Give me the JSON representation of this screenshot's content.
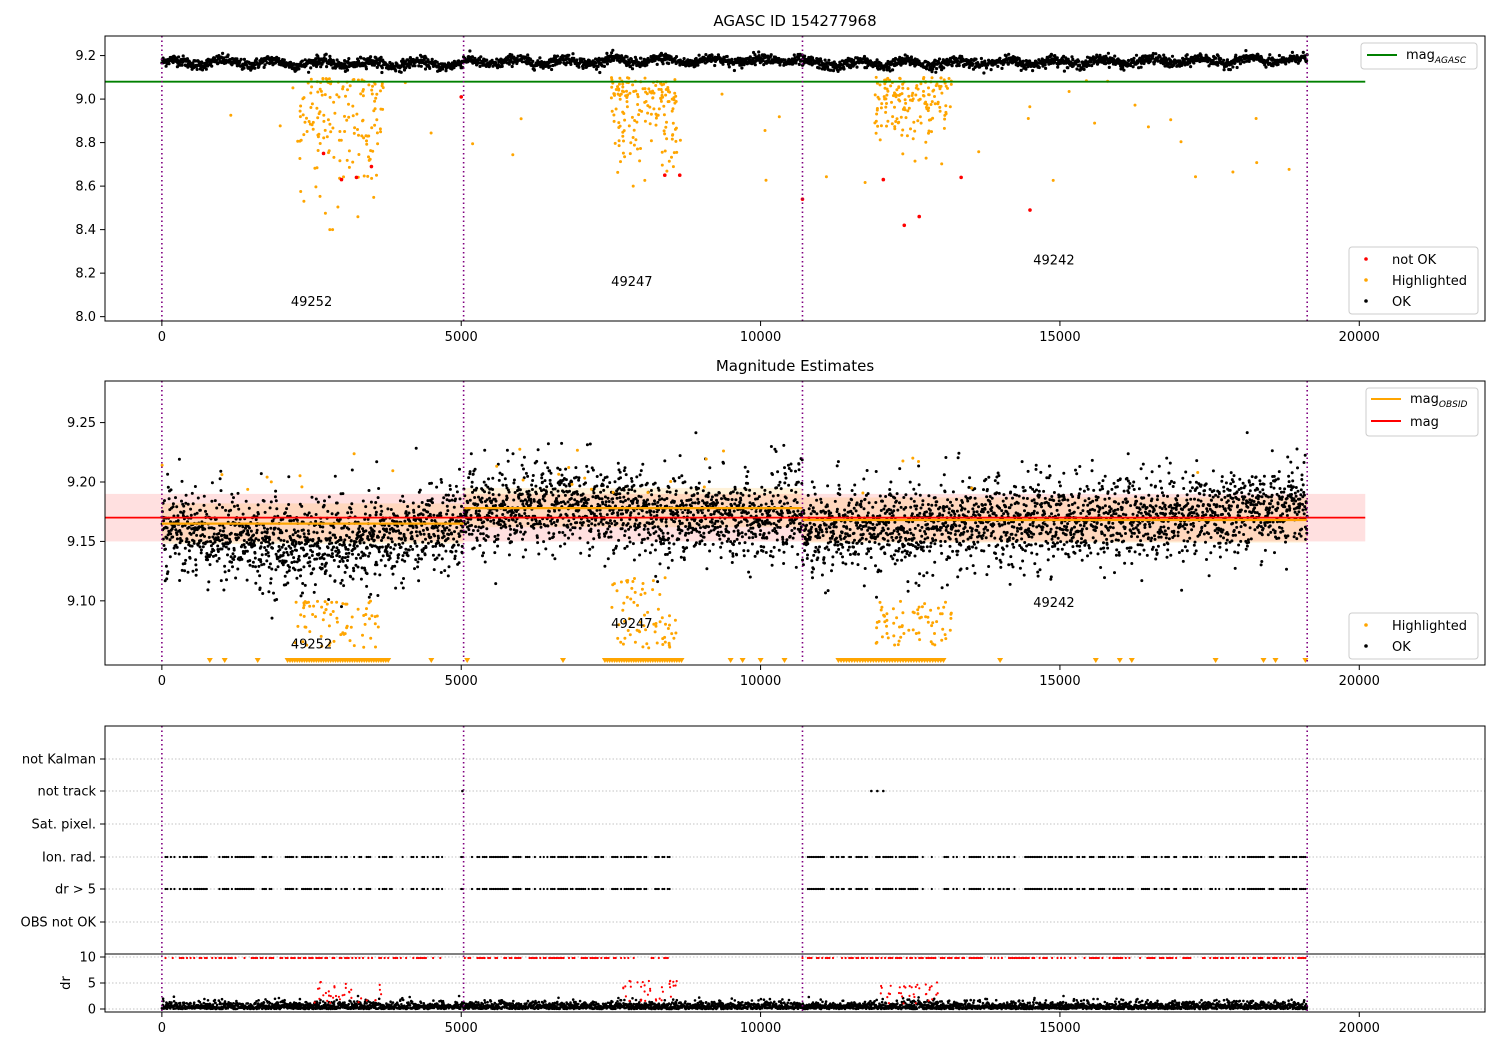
{
  "figure": {
    "colors": {
      "ok": "#000000",
      "highlighted": "#ffa500",
      "not_ok": "#ff0000",
      "mag_agasc": "#008000",
      "mag_obsid": "#ffa500",
      "mag": "#ff0000",
      "boundary": "#800080",
      "grid": "#b0b0b0"
    }
  },
  "chart_data": [
    {
      "type": "scatter",
      "title": "AGASC ID 154277968",
      "xlim": [
        -950,
        22100
      ],
      "ylim": [
        7.98,
        9.29
      ],
      "x_ticks": [
        0,
        5000,
        10000,
        15000,
        20000
      ],
      "y_ticks": [
        8.0,
        8.2,
        8.4,
        8.6,
        8.8,
        9.0,
        9.2
      ],
      "y_tick_labels": [
        "8.0",
        "8.2",
        "8.4",
        "8.6",
        "8.8",
        "9.0",
        "9.2"
      ],
      "obs_boundaries": [
        0,
        5040,
        10700,
        19130
      ],
      "obs_labels": [
        {
          "text": "49252",
          "x": 2500,
          "y": 8.05
        },
        {
          "text": "49247",
          "x": 7850,
          "y": 8.14
        },
        {
          "text": "49242",
          "x": 14900,
          "y": 8.24
        }
      ],
      "lines": [
        {
          "name": "mag",
          "subscript": "AGASC",
          "y": 9.08,
          "x": [
            -950,
            20100
          ]
        }
      ],
      "ok_trend": {
        "x_range": [
          0,
          19130
        ],
        "segments": [
          {
            "x0": 0,
            "x1": 5040,
            "y0": 9.17,
            "y1": 9.16
          },
          {
            "x0": 5040,
            "x1": 10700,
            "y0": 9.17,
            "y1": 9.18
          },
          {
            "x0": 10700,
            "x1": 19130,
            "y0": 9.16,
            "y1": 9.18
          }
        ]
      },
      "clusters": [
        {
          "x": [
            2300,
            3700
          ],
          "y": [
            8.4,
            9.1
          ],
          "label": "Highlighted"
        },
        {
          "x": [
            7500,
            8600
          ],
          "y": [
            8.6,
            9.1
          ],
          "label": "Highlighted"
        },
        {
          "x": [
            11900,
            13200
          ],
          "y": [
            8.7,
            9.1
          ],
          "label": "Highlighted"
        }
      ],
      "not_ok_points": [
        {
          "x": 2700,
          "y": 8.75
        },
        {
          "x": 3000,
          "y": 8.63
        },
        {
          "x": 3250,
          "y": 8.64
        },
        {
          "x": 3500,
          "y": 8.69
        },
        {
          "x": 5000,
          "y": 9.01
        },
        {
          "x": 8400,
          "y": 8.65
        },
        {
          "x": 8650,
          "y": 8.65
        },
        {
          "x": 10700,
          "y": 8.54
        },
        {
          "x": 12050,
          "y": 8.63
        },
        {
          "x": 12400,
          "y": 8.42
        },
        {
          "x": 12650,
          "y": 8.46
        },
        {
          "x": 13350,
          "y": 8.64
        },
        {
          "x": 14500,
          "y": 8.49
        }
      ],
      "legend_top": [
        {
          "label": "mag",
          "subscript": "AGASC"
        }
      ],
      "legend_bottom": [
        "not OK",
        "Highlighted",
        "OK"
      ]
    },
    {
      "type": "scatter",
      "title": "Magnitude Estimates",
      "xlim": [
        -950,
        22100
      ],
      "ylim": [
        9.046,
        9.285
      ],
      "x_ticks": [
        0,
        5000,
        10000,
        15000,
        20000
      ],
      "y_ticks": [
        9.1,
        9.15,
        9.2,
        9.25
      ],
      "y_tick_labels": [
        "9.10",
        "9.15",
        "9.20",
        "9.25"
      ],
      "obs_boundaries": [
        0,
        5040,
        10700,
        19130
      ],
      "obs_labels": [
        {
          "text": "49252",
          "x": 2500,
          "y": 9.06
        },
        {
          "text": "49247",
          "x": 7850,
          "y": 9.077
        },
        {
          "text": "49242",
          "x": 14900,
          "y": 9.095
        }
      ],
      "mag": {
        "y": 9.17,
        "band": [
          9.15,
          9.19
        ],
        "x": [
          -950,
          20100
        ]
      },
      "mag_obsid": [
        {
          "x0": 0,
          "x1": 5040,
          "y": 9.165,
          "band": [
            9.148,
            9.182
          ]
        },
        {
          "x0": 5040,
          "x1": 10700,
          "y": 9.178,
          "band": [
            9.162,
            9.195
          ]
        },
        {
          "x0": 10700,
          "x1": 19130,
          "y": 9.168,
          "band": [
            9.149,
            9.187
          ]
        }
      ],
      "legend_top": [
        {
          "label": "mag",
          "subscript": "OBSID"
        },
        {
          "label": "mag",
          "subscript": ""
        }
      ],
      "legend_bottom": [
        "Highlighted",
        "OK"
      ]
    },
    {
      "type": "scatter",
      "xlim": [
        -950,
        22100
      ],
      "x_ticks": [
        0,
        5000,
        10000,
        15000,
        20000
      ],
      "obs_boundaries": [
        0,
        5040,
        10700,
        19130
      ],
      "flag_rows": [
        "not Kalman",
        "not track",
        "Sat. pixel.",
        "Ion. rad.",
        "dr > 5",
        "OBS not OK"
      ],
      "dr_panel": {
        "ylabel": "dr",
        "y_ticks": [
          0,
          5,
          10
        ],
        "ylim": [
          -0.5,
          10.5
        ]
      },
      "flag_ranges": [
        [
          0,
          4700
        ],
        [
          5000,
          8600
        ],
        [
          10700,
          19130
        ]
      ],
      "not_track_points": [
        {
          "x": 5020
        },
        {
          "x": 11850
        },
        {
          "x": 11950
        },
        {
          "x": 12050
        }
      ]
    }
  ]
}
